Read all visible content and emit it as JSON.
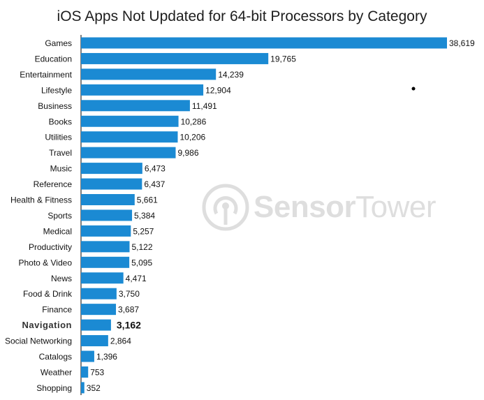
{
  "chart_data": {
    "type": "bar",
    "orientation": "horizontal",
    "title": "iOS Apps Not Updated for 64-bit Processors by Category",
    "xlabel": "",
    "ylabel": "",
    "xlim": [
      0,
      38619
    ],
    "grid": false,
    "legend": "none",
    "bar_color": "#1b8ad3",
    "categories": [
      "Games",
      "Education",
      "Entertainment",
      "Lifestyle",
      "Business",
      "Books",
      "Utilities",
      "Travel",
      "Music",
      "Reference",
      "Health & Fitness",
      "Sports",
      "Medical",
      "Productivity",
      "Photo & Video",
      "News",
      "Food & Drink",
      "Finance",
      "Navigation",
      "Social Networking",
      "Catalogs",
      "Weather",
      "Shopping"
    ],
    "values": [
      38619,
      19765,
      14239,
      12904,
      11491,
      10286,
      10206,
      9986,
      6473,
      6437,
      5661,
      5384,
      5257,
      5122,
      5095,
      4471,
      3750,
      3687,
      3162,
      2864,
      1396,
      753,
      352
    ],
    "value_labels": [
      "38,619",
      "19,765",
      "14,239",
      "12,904",
      "11,491",
      "10,286",
      "10,206",
      "9,986",
      "6,473",
      "6,437",
      "5,661",
      "5,384",
      "5,257",
      "5,122",
      "5,095",
      "4,471",
      "3,750",
      "3,687",
      "3,162",
      "2,864",
      "1,396",
      "753",
      "352"
    ],
    "highlighted_category": "Navigation"
  },
  "watermark": {
    "brand_bold": "Sensor",
    "brand_light": "Tower",
    "color": "#6b6b6b"
  }
}
